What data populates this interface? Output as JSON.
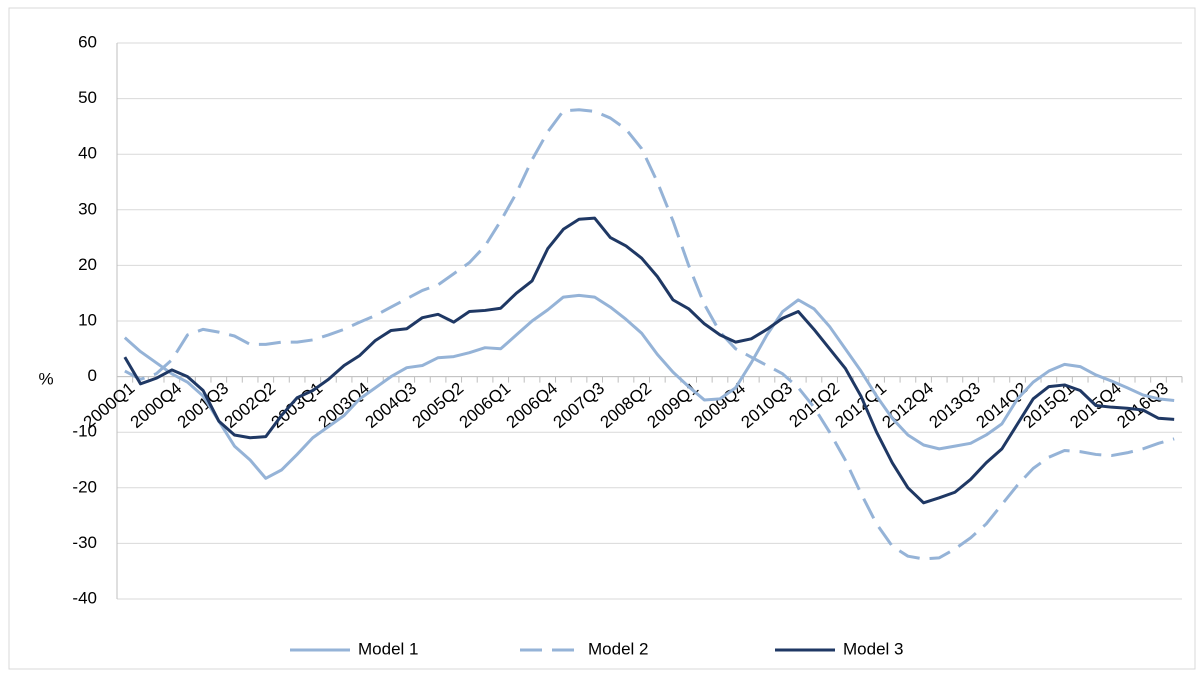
{
  "chart_data": {
    "type": "line",
    "y_label": "%",
    "categories": [
      "2000Q1",
      null,
      null,
      "2000Q4",
      null,
      null,
      "2001Q3",
      null,
      null,
      "2002Q2",
      null,
      null,
      "2003Q1",
      null,
      null,
      "2003Q4",
      null,
      null,
      "2004Q3",
      null,
      null,
      "2005Q2",
      null,
      null,
      "2006Q1",
      null,
      null,
      "2006Q4",
      null,
      null,
      "2007Q3",
      null,
      null,
      "2008Q2",
      null,
      null,
      "2009Q1",
      null,
      null,
      "2009Q4",
      null,
      null,
      "2010Q3",
      null,
      null,
      "2011Q2",
      null,
      null,
      "2012Q1",
      null,
      null,
      "2012Q4",
      null,
      null,
      "2013Q3",
      null,
      null,
      "2014Q2",
      null,
      null,
      "2015Q1",
      null,
      null,
      "2015Q4",
      null,
      null,
      "2016Q3",
      null
    ],
    "series": [
      {
        "name": "Model 1",
        "color": "#95b3d7",
        "style": "solid",
        "values": [
          7,
          4.5,
          2.5,
          0.5,
          -1,
          -3.5,
          -8,
          -12.5,
          -15,
          -18.3,
          -16.8,
          -14,
          -11,
          -9,
          -7,
          -4,
          -2,
          0,
          1.6,
          2,
          3.4,
          3.6,
          4.3,
          5.2,
          5,
          7.5,
          10,
          12,
          14.3,
          14.6,
          14.3,
          12.5,
          10.3,
          7.8,
          4,
          0.8,
          -1.8,
          -4.2,
          -4,
          -2,
          2.5,
          7.5,
          11.7,
          13.8,
          12.2,
          9,
          5,
          1,
          -3.5,
          -7.5,
          -10.5,
          -12.3,
          -13,
          -12.5,
          -12,
          -10.5,
          -8.5,
          -4,
          -1,
          1,
          2.2,
          1.8,
          0.3,
          -0.8,
          -2,
          -3.3,
          -4,
          -4.3
        ]
      },
      {
        "name": "Model 2",
        "color": "#95b3d7",
        "style": "dashed",
        "values": [
          1,
          -0.5,
          0.5,
          3,
          7.5,
          8.5,
          8,
          7.3,
          5.8,
          5.8,
          6.2,
          6.2,
          6.6,
          7.5,
          8.5,
          9.8,
          11,
          12.5,
          14,
          15.5,
          16.5,
          18.5,
          20.5,
          23.5,
          28,
          33,
          39,
          44,
          47.8,
          48,
          47.7,
          46.5,
          44.5,
          41,
          35,
          28,
          20,
          13,
          8,
          5,
          3.5,
          2,
          0.5,
          -2,
          -5.5,
          -10,
          -15,
          -21,
          -26.5,
          -30.5,
          -32.3,
          -32.8,
          -32.6,
          -31,
          -29,
          -26.5,
          -23,
          -19.5,
          -16.5,
          -14.5,
          -13.3,
          -13.5,
          -14,
          -14.2,
          -13.7,
          -13,
          -12,
          -11.2
        ]
      },
      {
        "name": "Model 3",
        "color": "#1f3864",
        "style": "solid",
        "values": [
          3.5,
          -1.3,
          -0.3,
          1.2,
          0,
          -2.5,
          -8,
          -10.5,
          -11,
          -10.8,
          -7,
          -3.8,
          -2.5,
          -0.5,
          2,
          3.8,
          6.5,
          8.3,
          8.6,
          10.6,
          11.2,
          9.8,
          11.7,
          11.9,
          12.3,
          15,
          17.2,
          23,
          26.5,
          28.3,
          28.5,
          25,
          23.5,
          21.3,
          18,
          13.8,
          12.2,
          9.5,
          7.5,
          6.2,
          6.8,
          8.5,
          10.5,
          11.7,
          8.5,
          5,
          1.5,
          -3.5,
          -10,
          -15.5,
          -20,
          -22.7,
          -21.8,
          -20.8,
          -18.5,
          -15.5,
          -13,
          -8.5,
          -4,
          -1.8,
          -1.5,
          -2.5,
          -5.2,
          -5.5,
          -5.7,
          -6,
          -7.5,
          -7.7
        ]
      }
    ],
    "ylim": [
      -40,
      60
    ],
    "yticks": [
      -40,
      -30,
      -20,
      -10,
      0,
      10,
      20,
      30,
      40,
      50,
      60
    ],
    "grid": true,
    "legend": "bottom"
  }
}
